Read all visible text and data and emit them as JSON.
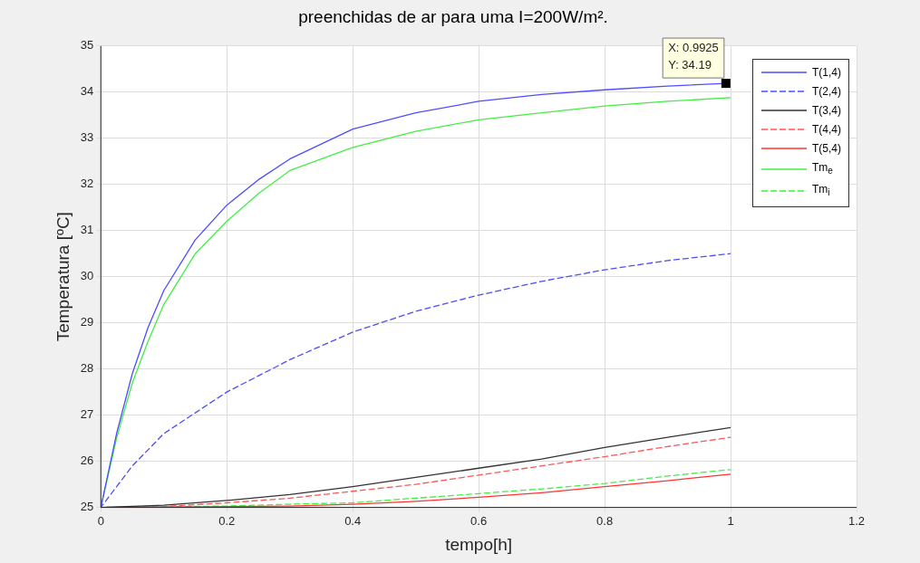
{
  "chart_data": {
    "type": "line",
    "title": "preenchidas de ar para uma I=200W/m².",
    "xlabel": "tempo[h]",
    "ylabel": "Temperatura [ºC]",
    "xlim": [
      0,
      1.2
    ],
    "xticks": [
      0,
      0.2,
      0.4,
      0.6,
      0.8,
      1,
      1.2
    ],
    "ylim": [
      25,
      35
    ],
    "yticks": [
      25,
      26,
      27,
      28,
      29,
      30,
      31,
      32,
      33,
      34,
      35
    ],
    "grid": true,
    "legend": "top right",
    "marker": "none",
    "annotations": [
      {
        "text": "X: 0.9925\nY: 34.19",
        "x": 0.9925,
        "y": 34.19
      }
    ],
    "series": [
      {
        "name": "T(1,4)",
        "color": "#4d4dff",
        "line_style": "solid",
        "x": [
          0,
          0.025,
          0.05,
          0.075,
          0.1,
          0.15,
          0.2,
          0.25,
          0.3,
          0.4,
          0.5,
          0.6,
          0.7,
          0.8,
          0.9,
          0.9925
        ],
        "values": [
          25,
          26.6,
          27.9,
          28.9,
          29.7,
          30.8,
          31.55,
          32.1,
          32.55,
          33.2,
          33.55,
          33.8,
          33.95,
          34.05,
          34.13,
          34.19
        ]
      },
      {
        "name": "T(2,4)",
        "color": "#4d4dff",
        "line_style": "dashed",
        "x": [
          0,
          0.05,
          0.1,
          0.15,
          0.2,
          0.3,
          0.4,
          0.5,
          0.6,
          0.7,
          0.8,
          0.9,
          1
        ],
        "values": [
          25,
          25.9,
          26.6,
          27.05,
          27.5,
          28.2,
          28.8,
          29.25,
          29.6,
          29.9,
          30.15,
          30.35,
          30.5
        ]
      },
      {
        "name": "T(3,4)",
        "color": "#333333",
        "line_style": "solid",
        "x": [
          0,
          0.1,
          0.2,
          0.3,
          0.4,
          0.5,
          0.6,
          0.7,
          0.8,
          0.9,
          1
        ],
        "values": [
          25,
          25.05,
          25.15,
          25.28,
          25.45,
          25.65,
          25.85,
          26.05,
          26.3,
          26.52,
          26.73
        ]
      },
      {
        "name": "T(4,4)",
        "color": "#ff5555",
        "line_style": "dashed",
        "x": [
          0,
          0.1,
          0.2,
          0.3,
          0.4,
          0.5,
          0.6,
          0.7,
          0.8,
          0.9,
          1
        ],
        "values": [
          25,
          25.02,
          25.1,
          25.2,
          25.35,
          25.5,
          25.7,
          25.9,
          26.1,
          26.32,
          26.52
        ]
      },
      {
        "name": "T(5,4)",
        "color": "#ff3333",
        "line_style": "solid",
        "x": [
          0,
          0.3,
          0.4,
          0.5,
          0.6,
          0.7,
          0.8,
          0.9,
          1
        ],
        "values": [
          25,
          25.03,
          25.07,
          25.13,
          25.22,
          25.32,
          25.45,
          25.58,
          25.72
        ]
      },
      {
        "name": "Tm$_{e}$",
        "color": "#44ee44",
        "line_style": "solid",
        "x": [
          0,
          0.025,
          0.05,
          0.075,
          0.1,
          0.15,
          0.2,
          0.25,
          0.3,
          0.4,
          0.5,
          0.6,
          0.7,
          0.8,
          0.9,
          1
        ],
        "values": [
          25,
          26.5,
          27.7,
          28.6,
          29.4,
          30.5,
          31.2,
          31.8,
          32.3,
          32.8,
          33.15,
          33.4,
          33.55,
          33.7,
          33.8,
          33.88
        ]
      },
      {
        "name": "Tm$_{i}$",
        "color": "#44ee44",
        "line_style": "dashed",
        "x": [
          0,
          0.2,
          0.3,
          0.4,
          0.5,
          0.6,
          0.7,
          0.8,
          0.9,
          1
        ],
        "values": [
          25,
          25.03,
          25.07,
          25.1,
          25.2,
          25.3,
          25.4,
          25.52,
          25.68,
          25.82
        ]
      }
    ]
  }
}
